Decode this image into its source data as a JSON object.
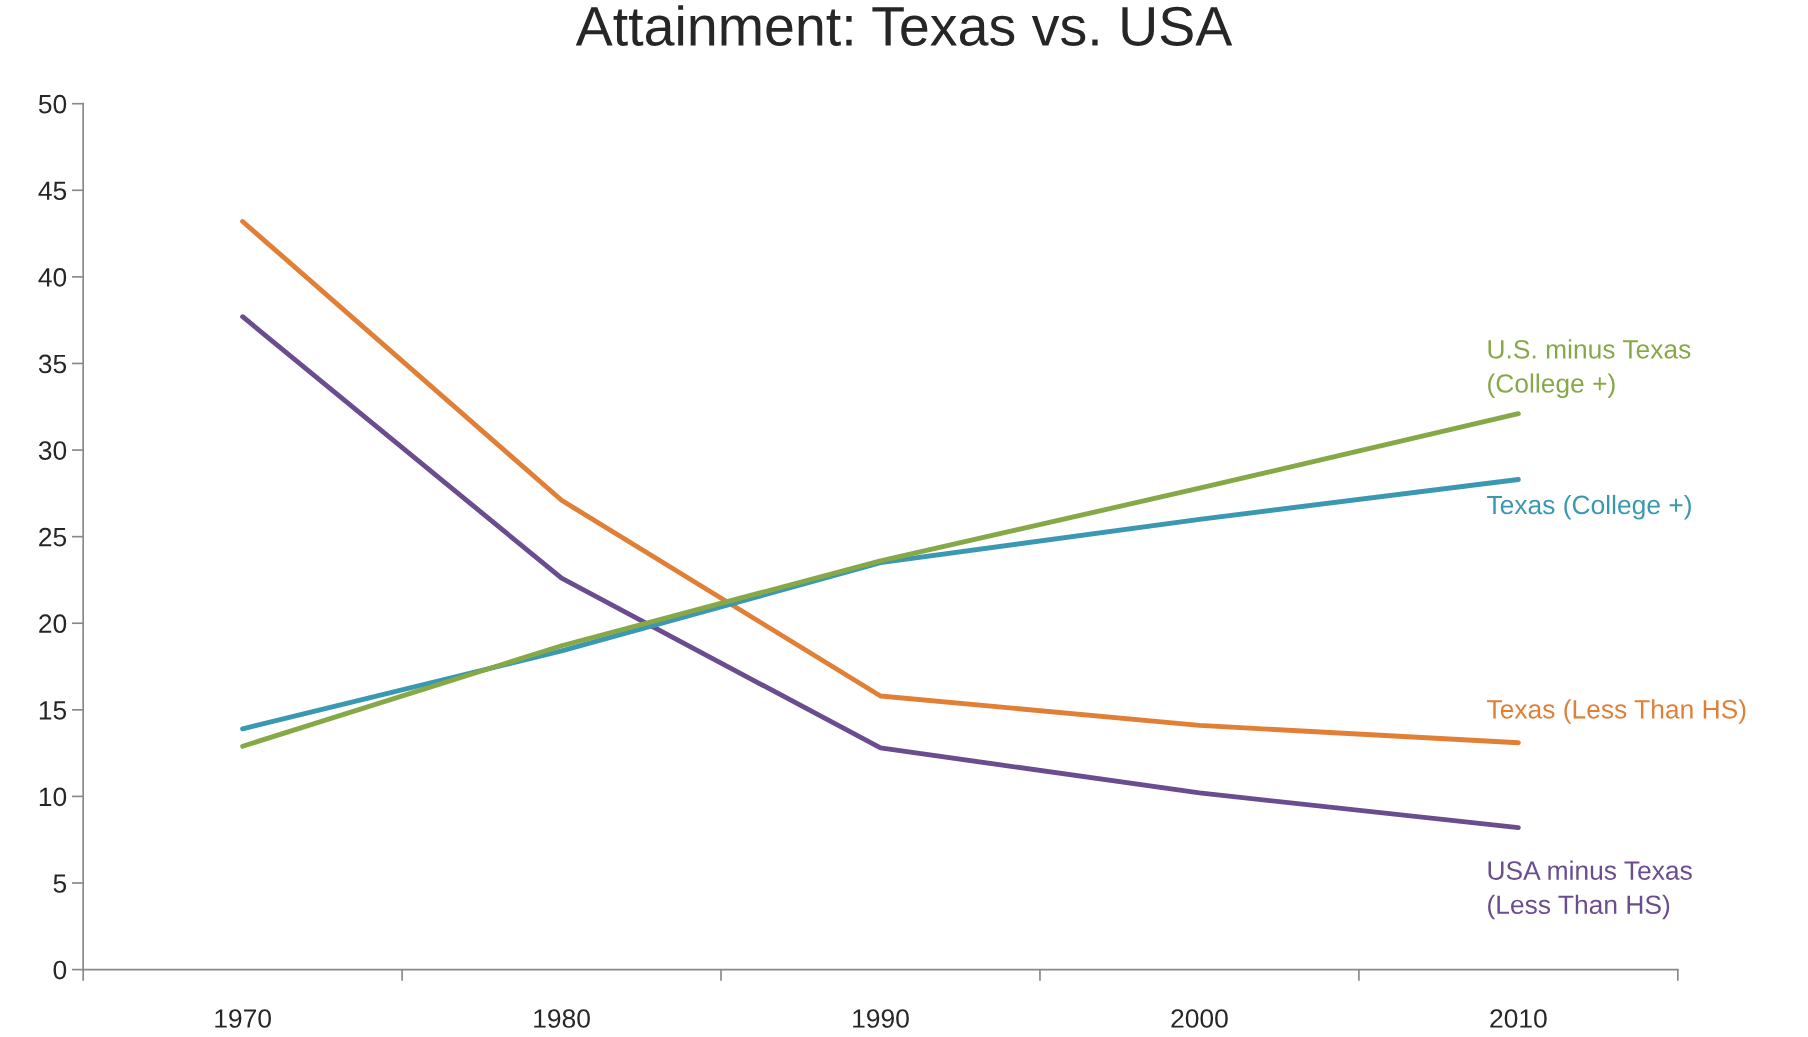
{
  "chart_data": {
    "type": "line",
    "title": "Attainment: Texas vs. USA",
    "categories": [
      "1970",
      "1980",
      "1990",
      "2000",
      "2010"
    ],
    "series": [
      {
        "name": "Texas (Less Than HS)",
        "color": "#e07f35",
        "values": [
          43.2,
          27.1,
          15.8,
          14.1,
          13.1
        ]
      },
      {
        "name": "USA minus Texas\n(Less Than HS)",
        "color": "#6a4c8f",
        "values": [
          37.7,
          22.6,
          12.8,
          10.2,
          8.2
        ]
      },
      {
        "name": "Texas (College +)",
        "color": "#3a98b0",
        "values": [
          13.9,
          18.4,
          23.5,
          26.0,
          28.3
        ]
      },
      {
        "name": "U.S. minus Texas\n(College +)",
        "color": "#86a846",
        "values": [
          12.9,
          18.7,
          23.6,
          27.8,
          32.1
        ]
      }
    ],
    "ylim": [
      0,
      50
    ],
    "yticks": [
      0,
      5,
      10,
      15,
      20,
      25,
      30,
      35,
      40,
      45,
      50
    ],
    "grid": false,
    "legend": false,
    "marker": "none",
    "line_style": "solid"
  }
}
